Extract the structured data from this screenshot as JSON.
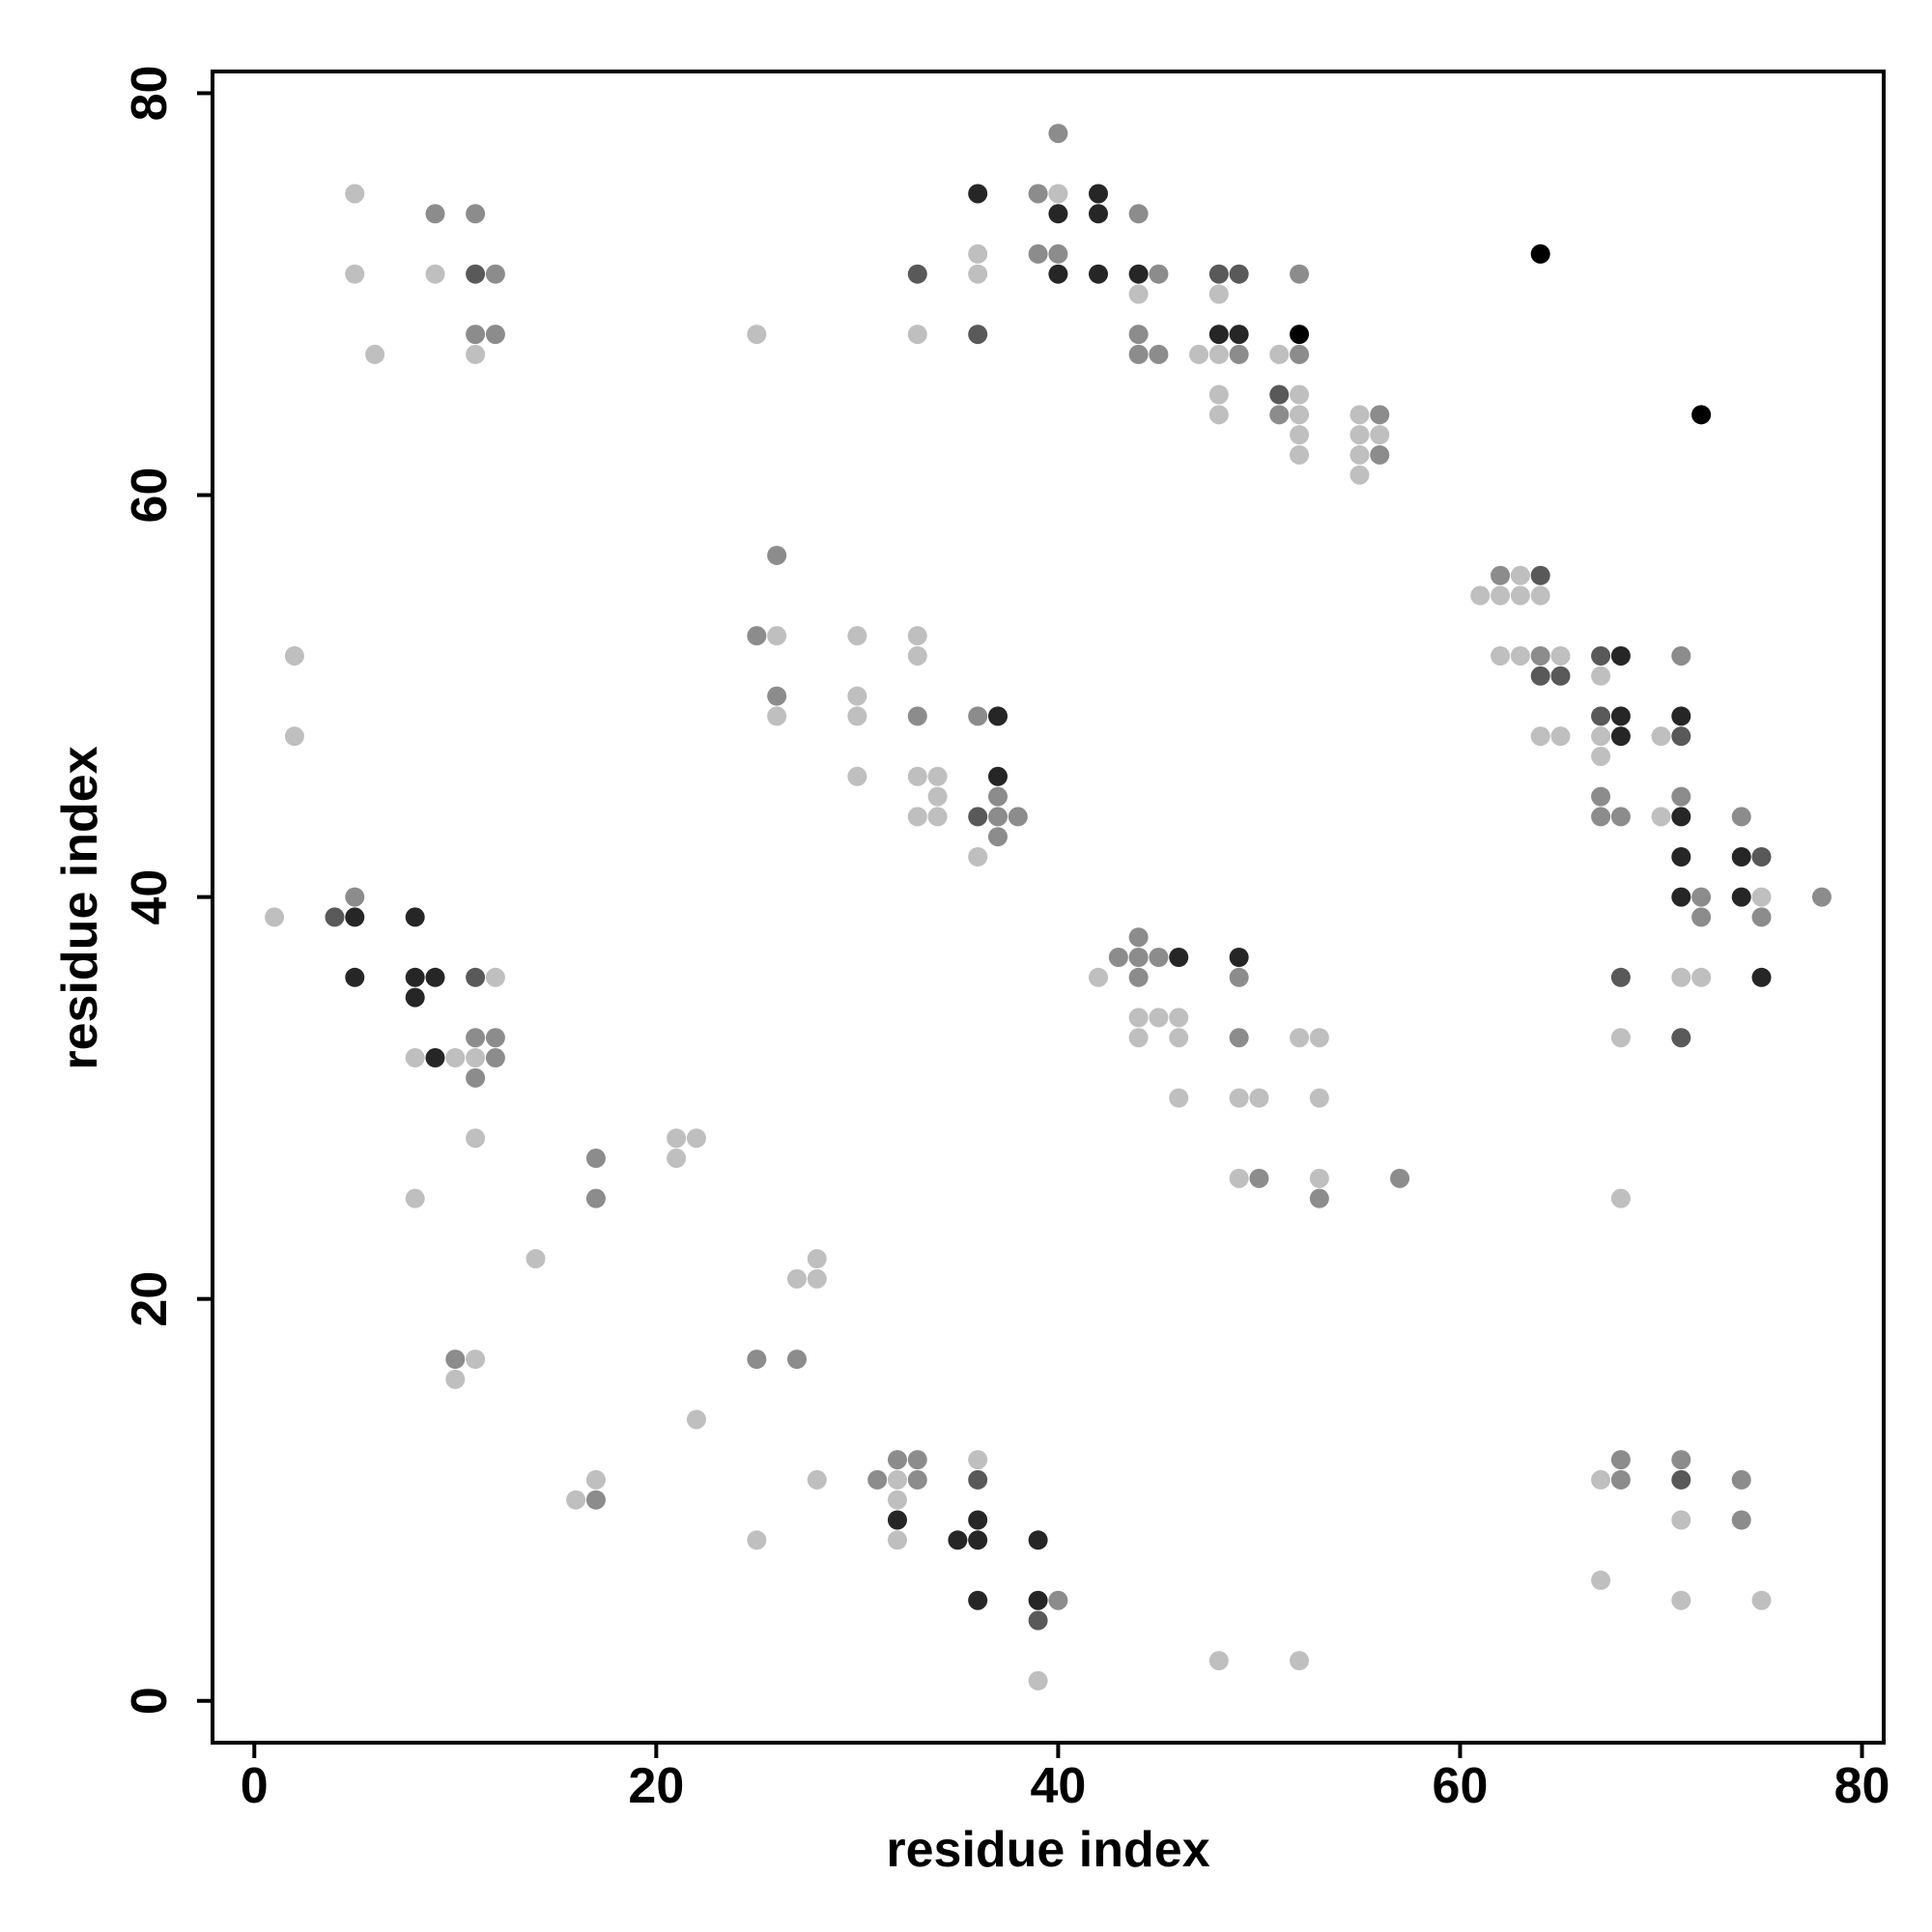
{
  "chart_data": {
    "type": "scatter",
    "xlabel": "residue index",
    "ylabel": "residue index",
    "xlim": [
      -2.08,
      81.08
    ],
    "ylim": [
      -2.08,
      81.08
    ],
    "xticks": [
      0,
      20,
      40,
      60,
      80
    ],
    "yticks": [
      0,
      20,
      40,
      60,
      80
    ],
    "x": [
      5,
      5,
      9,
      11,
      9,
      11,
      12,
      6,
      11,
      12,
      11,
      2,
      2,
      1,
      4,
      5,
      5,
      5,
      8,
      8,
      9,
      8,
      11,
      12,
      11,
      12,
      8,
      9,
      10,
      11,
      12,
      11,
      11,
      8,
      17,
      17,
      14,
      21,
      22,
      21,
      10,
      11,
      10,
      16,
      17,
      17,
      22,
      25,
      27,
      27,
      28,
      28,
      28,
      25,
      31,
      32,
      33,
      32,
      33,
      32,
      32,
      32,
      35,
      36,
      36,
      36,
      36,
      36,
      39,
      39,
      40,
      39,
      39,
      48,
      52,
      25,
      26,
      26,
      26,
      26,
      30,
      30,
      30,
      30,
      33,
      33,
      33,
      33,
      34,
      34,
      33,
      34,
      36,
      37,
      37,
      37,
      36,
      37,
      38,
      37,
      36,
      25,
      33,
      33,
      36,
      36,
      36,
      36,
      40,
      39,
      40,
      42,
      40,
      42,
      39,
      40,
      40,
      42,
      44,
      44,
      45,
      44,
      44,
      44,
      45,
      47,
      48,
      49,
      48,
      49,
      48,
      48,
      49,
      48,
      48,
      52,
      52,
      51,
      52,
      51,
      52,
      51,
      52,
      52,
      52,
      55,
      56,
      55,
      56,
      55,
      56,
      55,
      64,
      72,
      42,
      43,
      44,
      45,
      46,
      44,
      44,
      44,
      45,
      46,
      44,
      46,
      46,
      49,
      49,
      49,
      49,
      50,
      49,
      50,
      52,
      53,
      53,
      53,
      53,
      57,
      61,
      62,
      63,
      64,
      62,
      63,
      64,
      62,
      63,
      64,
      65,
      64,
      65,
      64,
      65,
      67,
      68,
      67,
      67,
      68,
      67,
      68,
      67,
      67,
      67,
      68,
      70,
      71,
      71,
      71,
      71,
      70,
      71,
      71,
      71,
      72,
      72,
      74,
      74,
      75,
      74,
      75,
      75,
      78,
      68,
      71,
      72,
      75,
      68,
      71,
      68,
      68,
      67,
      68,
      71,
      71,
      71,
      74,
      74,
      67,
      71,
      75
    ],
    "values": [
      75,
      71,
      74,
      74,
      71,
      71,
      71,
      67,
      68,
      68,
      67,
      52,
      48,
      39,
      39,
      39,
      40,
      36,
      39,
      36,
      36,
      35,
      36,
      36,
      33,
      33,
      32,
      32,
      32,
      32,
      32,
      31,
      28,
      25,
      27,
      25,
      22,
      28,
      28,
      27,
      17,
      17,
      16,
      10,
      10,
      11,
      14,
      17,
      17,
      21,
      21,
      22,
      11,
      8,
      11,
      11,
      11,
      12,
      12,
      10,
      9,
      8,
      8,
      8,
      9,
      11,
      12,
      5,
      8,
      5,
      5,
      4,
      1,
      2,
      2,
      53,
      53,
      57,
      50,
      49,
      53,
      50,
      49,
      46,
      53,
      52,
      49,
      46,
      46,
      45,
      44,
      44,
      49,
      49,
      46,
      45,
      44,
      44,
      44,
      43,
      42,
      68,
      71,
      68,
      75,
      72,
      71,
      68,
      78,
      75,
      75,
      75,
      74,
      74,
      72,
      72,
      71,
      71,
      74,
      71,
      71,
      70,
      68,
      67,
      67,
      67,
      67,
      67,
      71,
      71,
      70,
      68,
      68,
      65,
      64,
      71,
      68,
      67,
      67,
      65,
      65,
      64,
      64,
      63,
      62,
      64,
      64,
      63,
      63,
      62,
      62,
      61,
      72,
      64,
      36,
      37,
      37,
      37,
      37,
      38,
      36,
      34,
      34,
      34,
      33,
      33,
      30,
      37,
      36,
      33,
      30,
      30,
      26,
      26,
      33,
      33,
      30,
      26,
      25,
      26,
      55,
      55,
      55,
      55,
      56,
      56,
      56,
      52,
      52,
      52,
      52,
      51,
      51,
      48,
      48,
      52,
      52,
      51,
      49,
      49,
      48,
      48,
      47,
      45,
      44,
      44,
      48,
      48,
      52,
      49,
      45,
      44,
      44,
      42,
      40,
      40,
      39,
      44,
      42,
      42,
      40,
      40,
      39,
      40,
      36,
      36,
      36,
      36,
      33,
      33,
      25,
      12,
      11,
      11,
      12,
      11,
      9,
      11,
      9,
      6,
      5,
      5
    ],
    "colors": [
      "#bfbfbf",
      "#bfbfbf",
      "#8c8c8c",
      "#8c8c8c",
      "#bfbfbf",
      "#595959",
      "#8c8c8c",
      "#bfbfbf",
      "#8c8c8c",
      "#8c8c8c",
      "#bfbfbf",
      "#bfbfbf",
      "#bfbfbf",
      "#bfbfbf",
      "#595959",
      "#262626",
      "#8c8c8c",
      "#262626",
      "#262626",
      "#262626",
      "#262626",
      "#262626",
      "#595959",
      "#bfbfbf",
      "#8c8c8c",
      "#8c8c8c",
      "#bfbfbf",
      "#262626",
      "#bfbfbf",
      "#bfbfbf",
      "#8c8c8c",
      "#8c8c8c",
      "#bfbfbf",
      "#bfbfbf",
      "#8c8c8c",
      "#8c8c8c",
      "#bfbfbf",
      "#bfbfbf",
      "#bfbfbf",
      "#bfbfbf",
      "#8c8c8c",
      "#bfbfbf",
      "#bfbfbf",
      "#bfbfbf",
      "#8c8c8c",
      "#bfbfbf",
      "#bfbfbf",
      "#8c8c8c",
      "#8c8c8c",
      "#bfbfbf",
      "#bfbfbf",
      "#bfbfbf",
      "#bfbfbf",
      "#bfbfbf",
      "#8c8c8c",
      "#bfbfbf",
      "#8c8c8c",
      "#8c8c8c",
      "#8c8c8c",
      "#bfbfbf",
      "#262626",
      "#bfbfbf",
      "#262626",
      "#262626",
      "#262626",
      "#595959",
      "#bfbfbf",
      "#262626",
      "#262626",
      "#262626",
      "#8c8c8c",
      "#595959",
      "#bfbfbf",
      "#bfbfbf",
      "#bfbfbf",
      "#8c8c8c",
      "#bfbfbf",
      "#8c8c8c",
      "#8c8c8c",
      "#bfbfbf",
      "#bfbfbf",
      "#bfbfbf",
      "#bfbfbf",
      "#bfbfbf",
      "#bfbfbf",
      "#bfbfbf",
      "#8c8c8c",
      "#bfbfbf",
      "#bfbfbf",
      "#bfbfbf",
      "#bfbfbf",
      "#bfbfbf",
      "#8c8c8c",
      "#262626",
      "#262626",
      "#8c8c8c",
      "#595959",
      "#8c8c8c",
      "#8c8c8c",
      "#8c8c8c",
      "#bfbfbf",
      "#bfbfbf",
      "#595959",
      "#bfbfbf",
      "#262626",
      "#bfbfbf",
      "#bfbfbf",
      "#595959",
      "#8c8c8c",
      "#8c8c8c",
      "#bfbfbf",
      "#262626",
      "#262626",
      "#262626",
      "#8c8c8c",
      "#8c8c8c",
      "#262626",
      "#262626",
      "#8c8c8c",
      "#262626",
      "#8c8c8c",
      "#bfbfbf",
      "#8c8c8c",
      "#8c8c8c",
      "#8c8c8c",
      "#bfbfbf",
      "#bfbfbf",
      "#8c8c8c",
      "#595959",
      "#595959",
      "#bfbfbf",
      "#262626",
      "#262626",
      "#bfbfbf",
      "#bfbfbf",
      "#8c8c8c",
      "#000000",
      "#bfbfbf",
      "#8c8c8c",
      "#595959",
      "#bfbfbf",
      "#8c8c8c",
      "#bfbfbf",
      "#bfbfbf",
      "#bfbfbf",
      "#bfbfbf",
      "#8c8c8c",
      "#bfbfbf",
      "#bfbfbf",
      "#bfbfbf",
      "#8c8c8c",
      "#bfbfbf",
      "#000000",
      "#000000",
      "#bfbfbf",
      "#8c8c8c",
      "#8c8c8c",
      "#8c8c8c",
      "#262626",
      "#8c8c8c",
      "#8c8c8c",
      "#bfbfbf",
      "#bfbfbf",
      "#bfbfbf",
      "#bfbfbf",
      "#bfbfbf",
      "#bfbfbf",
      "#262626",
      "#8c8c8c",
      "#8c8c8c",
      "#bfbfbf",
      "#bfbfbf",
      "#bfbfbf",
      "#8c8c8c",
      "#bfbfbf",
      "#bfbfbf",
      "#bfbfbf",
      "#bfbfbf",
      "#8c8c8c",
      "#8c8c8c",
      "#bfbfbf",
      "#bfbfbf",
      "#bfbfbf",
      "#bfbfbf",
      "#8c8c8c",
      "#bfbfbf",
      "#595959",
      "#bfbfbf",
      "#bfbfbf",
      "#8c8c8c",
      "#bfbfbf",
      "#595959",
      "#595959",
      "#bfbfbf",
      "#bfbfbf",
      "#595959",
      "#262626",
      "#bfbfbf",
      "#595959",
      "#262626",
      "#bfbfbf",
      "#262626",
      "#bfbfbf",
      "#8c8c8c",
      "#8c8c8c",
      "#8c8c8c",
      "#bfbfbf",
      "#595959",
      "#8c8c8c",
      "#262626",
      "#8c8c8c",
      "#bfbfbf",
      "#262626",
      "#262626",
      "#262626",
      "#8c8c8c",
      "#8c8c8c",
      "#8c8c8c",
      "#262626",
      "#595959",
      "#262626",
      "#bfbfbf",
      "#8c8c8c",
      "#8c8c8c",
      "#595959",
      "#bfbfbf",
      "#bfbfbf",
      "#262626",
      "#bfbfbf",
      "#595959",
      "#bfbfbf",
      "#8c8c8c",
      "#bfbfbf",
      "#8c8c8c",
      "#8c8c8c",
      "#595959",
      "#bfbfbf",
      "#8c8c8c",
      "#8c8c8c",
      "#bfbfbf",
      "#bfbfbf",
      "#bfbfbf"
    ]
  }
}
